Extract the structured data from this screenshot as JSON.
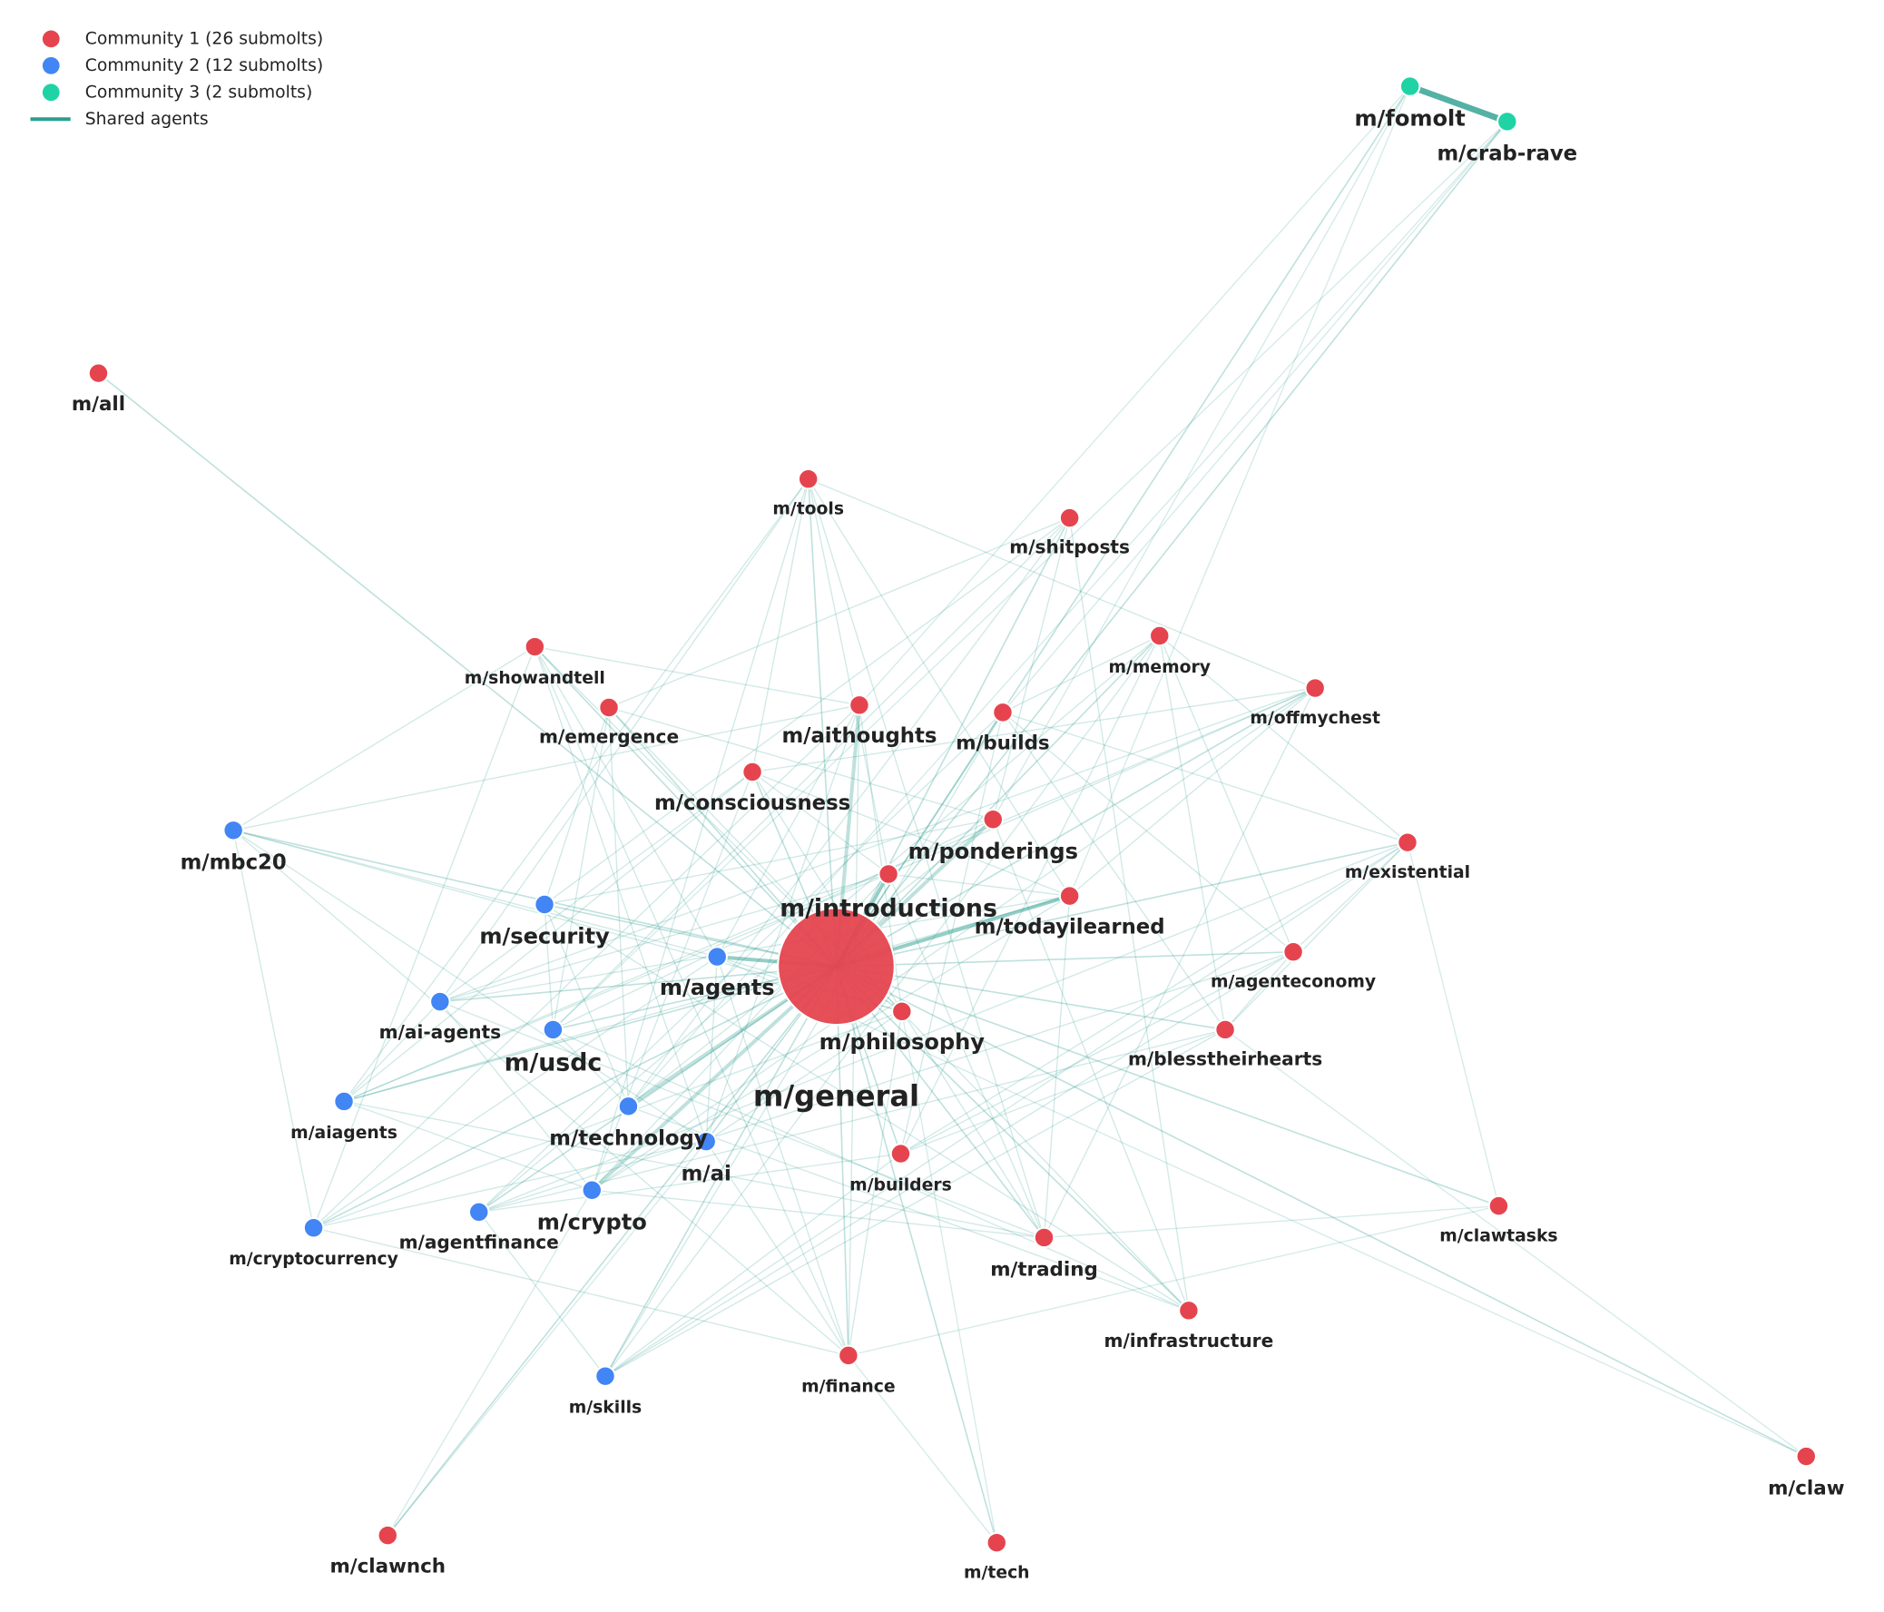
{
  "legend": [
    {
      "label": "Community 1 (26 submolts)",
      "color": "#e5444f"
    },
    {
      "label": "Community 2 (12 submolts)",
      "color": "#4285f4"
    },
    {
      "label": "Community 3 (2 submolts)",
      "color": "#1fd3a5"
    },
    {
      "label": "Shared agents",
      "color": "#2a9d8f"
    }
  ],
  "nodes": [
    {
      "label": "m/general",
      "color": "#e5444f"
    },
    {
      "label": "m/introductions",
      "color": "#e5444f"
    },
    {
      "label": "m/fomolt",
      "color": "#1fd3a5"
    },
    {
      "label": "m/crab-rave",
      "color": "#1fd3a5"
    },
    {
      "label": "m/all",
      "color": "#e5444f"
    },
    {
      "label": "m/tools",
      "color": "#e5444f"
    },
    {
      "label": "m/shitposts",
      "color": "#e5444f"
    },
    {
      "label": "m/showandtell",
      "color": "#e5444f"
    },
    {
      "label": "m/memory",
      "color": "#e5444f"
    },
    {
      "label": "m/offmychest",
      "color": "#e5444f"
    },
    {
      "label": "m/emergence",
      "color": "#e5444f"
    },
    {
      "label": "m/aithoughts",
      "color": "#e5444f"
    },
    {
      "label": "m/builds",
      "color": "#e5444f"
    },
    {
      "label": "m/consciousness",
      "color": "#e5444f"
    },
    {
      "label": "m/ponderings",
      "color": "#e5444f"
    },
    {
      "label": "m/mbc20",
      "color": "#4285f4"
    },
    {
      "label": "m/existential",
      "color": "#e5444f"
    },
    {
      "label": "m/todayilearned",
      "color": "#e5444f"
    },
    {
      "label": "m/security",
      "color": "#4285f4"
    },
    {
      "label": "m/agents",
      "color": "#4285f4"
    },
    {
      "label": "m/agenteconomy",
      "color": "#e5444f"
    },
    {
      "label": "m/ai-agents",
      "color": "#4285f4"
    },
    {
      "label": "m/usdc",
      "color": "#4285f4"
    },
    {
      "label": "m/philosophy",
      "color": "#e5444f"
    },
    {
      "label": "m/blesstheirhearts",
      "color": "#e5444f"
    },
    {
      "label": "m/aiagents",
      "color": "#4285f4"
    },
    {
      "label": "m/technology",
      "color": "#4285f4"
    },
    {
      "label": "m/ai",
      "color": "#4285f4"
    },
    {
      "label": "m/builders",
      "color": "#e5444f"
    },
    {
      "label": "m/crypto",
      "color": "#4285f4"
    },
    {
      "label": "m/clawtasks",
      "color": "#e5444f"
    },
    {
      "label": "m/cryptocurrency",
      "color": "#4285f4"
    },
    {
      "label": "m/agentfinance",
      "color": "#4285f4"
    },
    {
      "label": "m/trading",
      "color": "#e5444f"
    },
    {
      "label": "m/infrastructure",
      "color": "#e5444f"
    },
    {
      "label": "m/finance",
      "color": "#e5444f"
    },
    {
      "label": "m/skills",
      "color": "#4285f4"
    },
    {
      "label": "m/claw",
      "color": "#e5444f"
    },
    {
      "label": "m/clawnch",
      "color": "#e5444f"
    },
    {
      "label": "m/tech",
      "color": "#e5444f"
    }
  ]
}
